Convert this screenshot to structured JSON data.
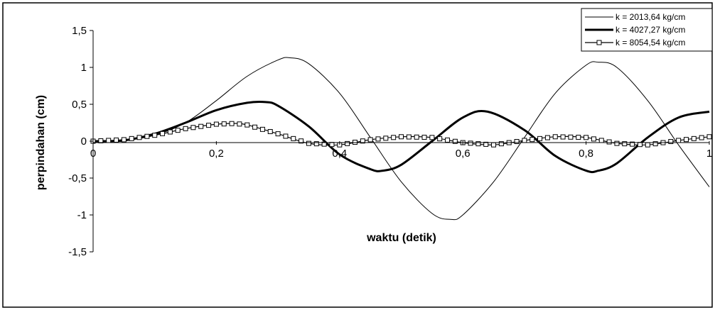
{
  "chart_data": {
    "type": "line",
    "title": "",
    "xlabel": "waktu (detik)",
    "ylabel": "perpindahan (cm)",
    "xlim": [
      0,
      1
    ],
    "ylim": [
      -1.5,
      1.5
    ],
    "xticks": [
      "0",
      "0,2",
      "0,4",
      "0,6",
      "0,8",
      "1"
    ],
    "yticks": [
      "1,5",
      "1",
      "0,5",
      "0",
      "-0,5",
      "-1",
      "-1,5"
    ],
    "grid": false,
    "legend_position": "top-right",
    "series": [
      {
        "name": "k = 2013,64 kg/cm",
        "style": "thin",
        "color": "#000000",
        "x": [
          0,
          0.05,
          0.1,
          0.15,
          0.2,
          0.25,
          0.3,
          0.32,
          0.35,
          0.4,
          0.45,
          0.5,
          0.55,
          0.58,
          0.6,
          0.65,
          0.7,
          0.75,
          0.8,
          0.82,
          0.85,
          0.9,
          0.95,
          1.0
        ],
        "y": [
          0,
          0.01,
          0.08,
          0.25,
          0.55,
          0.88,
          1.1,
          1.13,
          1.05,
          0.65,
          0.05,
          -0.55,
          -0.98,
          -1.06,
          -1.0,
          -0.55,
          0.05,
          0.65,
          1.03,
          1.07,
          1.0,
          0.55,
          -0.05,
          -0.62
        ]
      },
      {
        "name": "k = 4027,27 kg/cm",
        "style": "thick",
        "color": "#000000",
        "x": [
          0,
          0.05,
          0.1,
          0.15,
          0.2,
          0.25,
          0.28,
          0.3,
          0.35,
          0.4,
          0.45,
          0.47,
          0.5,
          0.55,
          0.6,
          0.64,
          0.7,
          0.75,
          0.8,
          0.82,
          0.85,
          0.9,
          0.95,
          1.0
        ],
        "y": [
          0,
          0.01,
          0.1,
          0.25,
          0.42,
          0.52,
          0.53,
          0.48,
          0.2,
          -0.18,
          -0.38,
          -0.4,
          -0.32,
          0.0,
          0.32,
          0.4,
          0.15,
          -0.2,
          -0.4,
          -0.4,
          -0.3,
          0.05,
          0.32,
          0.4
        ]
      },
      {
        "name": "k = 8054,54 kg/cm",
        "style": "square-markers",
        "color": "#000000",
        "x": [
          0,
          0.05,
          0.1,
          0.15,
          0.2,
          0.23,
          0.25,
          0.3,
          0.35,
          0.4,
          0.45,
          0.5,
          0.55,
          0.6,
          0.65,
          0.7,
          0.75,
          0.8,
          0.85,
          0.9,
          0.95,
          1.0
        ],
        "y": [
          0,
          0.02,
          0.08,
          0.17,
          0.23,
          0.24,
          0.22,
          0.1,
          -0.03,
          -0.05,
          0.02,
          0.06,
          0.05,
          -0.02,
          -0.05,
          0.01,
          0.06,
          0.05,
          -0.03,
          -0.05,
          0.01,
          0.06
        ]
      }
    ]
  }
}
